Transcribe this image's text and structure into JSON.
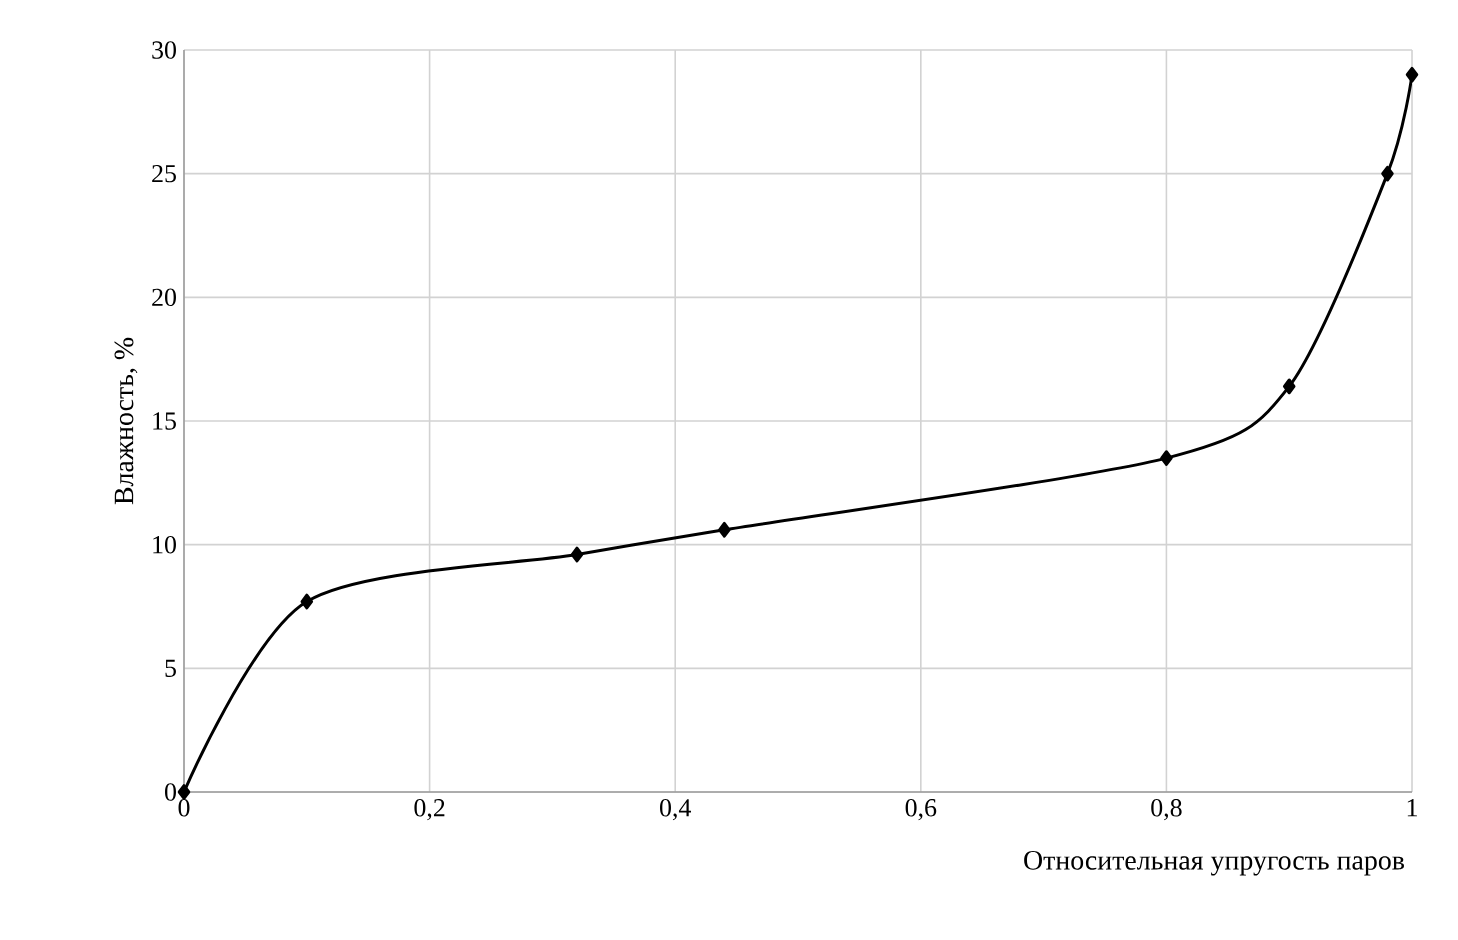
{
  "chart_data": {
    "type": "line",
    "xlabel": "Относительная упругость паров",
    "ylabel": "Влажность, %",
    "x": [
      0,
      0.1,
      0.32,
      0.44,
      0.8,
      0.9,
      0.98,
      1
    ],
    "series": [
      {
        "color": "#000000",
        "values": [
          0,
          7.7,
          9.6,
          10.6,
          13.5,
          16.4,
          25,
          29
        ]
      }
    ],
    "xlim": [
      0,
      1
    ],
    "ylim": [
      0,
      30
    ],
    "xticks": [
      {
        "value": 0,
        "label": "0"
      },
      {
        "value": 0.2,
        "label": "0,2"
      },
      {
        "value": 0.4,
        "label": "0,4"
      },
      {
        "value": 0.6,
        "label": "0,6"
      },
      {
        "value": 0.8,
        "label": "0,8"
      },
      {
        "value": 1,
        "label": "1"
      }
    ],
    "yticks": [
      0,
      5,
      10,
      15,
      20,
      25,
      30
    ],
    "grid": true,
    "marker": "diamond",
    "line_style": "solid"
  }
}
